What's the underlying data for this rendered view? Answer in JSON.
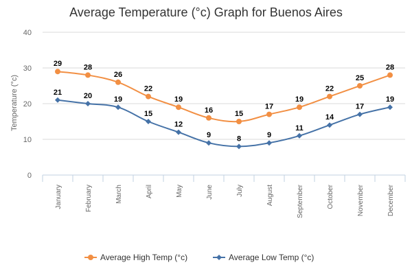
{
  "chart_data": {
    "type": "line",
    "title": "Average Temperature (°c) Graph for Buenos Aires",
    "xlabel": "",
    "ylabel": "Temperature (°c)",
    "ylim": [
      0,
      40
    ],
    "yticks": [
      0,
      10,
      20,
      30,
      40
    ],
    "grid": true,
    "legend_position": "bottom",
    "categories": [
      "January",
      "February",
      "March",
      "April",
      "May",
      "June",
      "July",
      "August",
      "September",
      "October",
      "November",
      "December"
    ],
    "series": [
      {
        "name": "Average High Temp (°c)",
        "values": [
          29,
          28,
          26,
          22,
          19,
          16,
          15,
          17,
          19,
          22,
          25,
          28
        ],
        "color": "#f28f43",
        "marker": "circle"
      },
      {
        "name": "Average Low Temp (°c)",
        "values": [
          21,
          20,
          19,
          15,
          12,
          9,
          8,
          9,
          11,
          14,
          17,
          19
        ],
        "color": "#4572a7",
        "marker": "diamond"
      }
    ]
  }
}
